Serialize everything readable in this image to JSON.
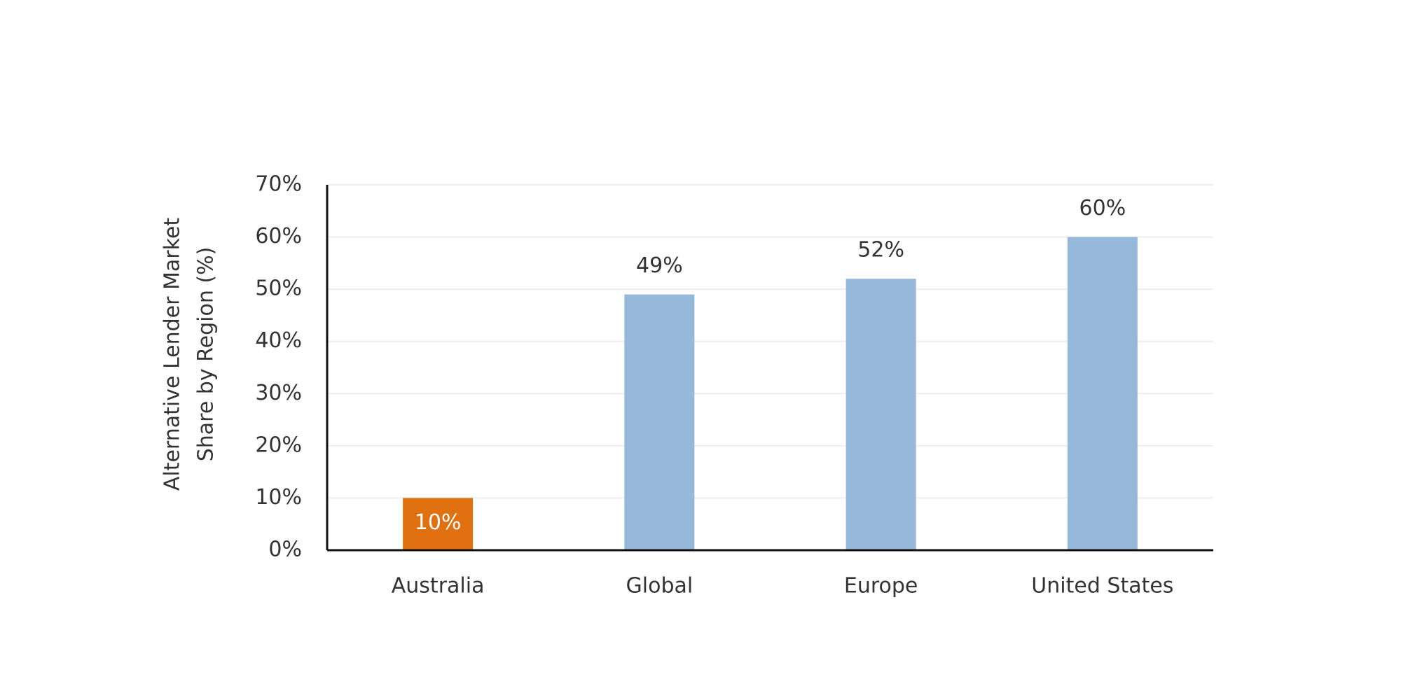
{
  "chart_data": {
    "type": "bar",
    "ylabel": [
      "Alternative Lender Market",
      "Share by Region (%)"
    ],
    "categories": [
      "Australia",
      "Global",
      "Europe",
      "United States"
    ],
    "values": [
      10,
      49,
      52,
      60
    ],
    "value_labels": [
      "10%",
      "49%",
      "52%",
      "60%"
    ],
    "label_positions": [
      "inside",
      "outside",
      "outside",
      "outside"
    ],
    "colors": [
      "#e07010",
      "#95b8db",
      "#95b8db",
      "#95b8db"
    ],
    "ylim": [
      0,
      70
    ],
    "yticks": [
      {
        "value": 0,
        "label": "0%"
      },
      {
        "value": 10,
        "label": "10%"
      },
      {
        "value": 20,
        "label": "20%"
      },
      {
        "value": 30,
        "label": "30%"
      },
      {
        "value": 40,
        "label": "40%"
      },
      {
        "value": 50,
        "label": "50%"
      },
      {
        "value": 60,
        "label": "60%"
      },
      {
        "value": 70,
        "label": "70%"
      }
    ],
    "grid": true
  }
}
